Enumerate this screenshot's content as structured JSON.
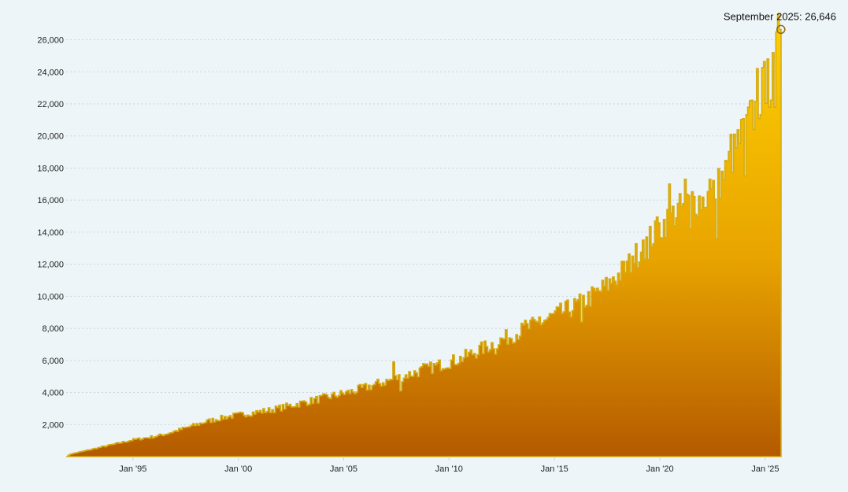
{
  "chart_data": {
    "type": "area",
    "title": "",
    "xlabel": "",
    "ylabel": "",
    "x_domain": [
      "1991-11",
      "2025-10"
    ],
    "ylim": [
      0,
      27500
    ],
    "y_ticks": [
      2000,
      4000,
      6000,
      8000,
      10000,
      12000,
      14000,
      16000,
      18000,
      20000,
      22000,
      24000,
      26000
    ],
    "y_tick_labels": [
      "2,000",
      "4,000",
      "6,000",
      "8,000",
      "10,000",
      "12,000",
      "14,000",
      "16,000",
      "18,000",
      "20,000",
      "22,000",
      "24,000",
      "26,000"
    ],
    "x_ticks": [
      "1995-01",
      "2000-01",
      "2005-01",
      "2010-01",
      "2015-01",
      "2020-01",
      "2025-01"
    ],
    "x_tick_labels": [
      "Jan '95",
      "Jan '00",
      "Jan '05",
      "Jan '10",
      "Jan '15",
      "Jan '20",
      "Jan '25"
    ],
    "grid": "horizontal dotted",
    "legend": "none",
    "fill_gradient_top": "#ffd000",
    "fill_gradient_bottom": "#b45a00",
    "line_color": "#d4ac16",
    "points": [
      [
        "1991-11",
        0
      ],
      [
        "1992-01",
        150
      ],
      [
        "1992-07",
        300
      ],
      [
        "1993-01",
        450
      ],
      [
        "1993-07",
        600
      ],
      [
        "1994-01",
        750
      ],
      [
        "1994-07",
        900
      ],
      [
        "1995-01",
        1050
      ],
      [
        "1995-07",
        1150
      ],
      [
        "1996-01",
        1250
      ],
      [
        "1996-07",
        1400
      ],
      [
        "1997-01",
        1600
      ],
      [
        "1997-07",
        1800
      ],
      [
        "1998-01",
        2000
      ],
      [
        "1998-07",
        2200
      ],
      [
        "1999-01",
        2350
      ],
      [
        "1999-07",
        2500
      ],
      [
        "2000-01",
        2600
      ],
      [
        "2000-07",
        2700
      ],
      [
        "2001-01",
        2800
      ],
      [
        "2001-07",
        2900
      ],
      [
        "2002-01",
        3050
      ],
      [
        "2002-07",
        3200
      ],
      [
        "2003-01",
        3350
      ],
      [
        "2003-07",
        3500
      ],
      [
        "2004-01",
        3650
      ],
      [
        "2004-07",
        3800
      ],
      [
        "2005-01",
        3950
      ],
      [
        "2005-07",
        4100
      ],
      [
        "2006-01",
        4300
      ],
      [
        "2006-07",
        4500
      ],
      [
        "2007-01",
        4700
      ],
      [
        "2007-07",
        4900
      ],
      [
        "2008-01",
        5100
      ],
      [
        "2008-07",
        5300
      ],
      [
        "2009-01",
        5500
      ],
      [
        "2009-07",
        5700
      ],
      [
        "2010-01",
        5900
      ],
      [
        "2010-07",
        6100
      ],
      [
        "2011-01",
        6400
      ],
      [
        "2011-07",
        6700
      ],
      [
        "2012-01",
        7000
      ],
      [
        "2012-07",
        7300
      ],
      [
        "2013-01",
        7600
      ],
      [
        "2013-07",
        7900
      ],
      [
        "2014-01",
        8200
      ],
      [
        "2014-07",
        8500
      ],
      [
        "2015-01",
        8800
      ],
      [
        "2015-07",
        9100
      ],
      [
        "2016-01",
        9400
      ],
      [
        "2016-07",
        9800
      ],
      [
        "2017-01",
        10200
      ],
      [
        "2017-07",
        10700
      ],
      [
        "2018-01",
        11300
      ],
      [
        "2018-07",
        12000
      ],
      [
        "2019-01",
        12800
      ],
      [
        "2019-07",
        13600
      ],
      [
        "2020-01",
        14300
      ],
      [
        "2020-07",
        15000
      ],
      [
        "2021-01",
        15500
      ],
      [
        "2021-07",
        16000
      ],
      [
        "2022-01",
        16000
      ],
      [
        "2022-07",
        16500
      ],
      [
        "2023-01",
        17500
      ],
      [
        "2023-07",
        19000
      ],
      [
        "2024-01",
        20500
      ],
      [
        "2024-07",
        21500
      ],
      [
        "2025-01",
        23500
      ],
      [
        "2025-04",
        23000
      ],
      [
        "2025-09",
        26646
      ],
      [
        "2025-10",
        1200
      ]
    ],
    "spikes": [
      [
        "2007-05",
        5900
      ],
      [
        "2008-10",
        5800
      ],
      [
        "2013-08",
        8500
      ],
      [
        "2014-04",
        8700
      ],
      [
        "2017-10",
        11200
      ],
      [
        "2018-09",
        12500
      ],
      [
        "2019-03",
        13500
      ],
      [
        "2019-10",
        14700
      ],
      [
        "2020-06",
        17000
      ],
      [
        "2021-03",
        17300
      ],
      [
        "2022-05",
        17300
      ],
      [
        "2023-05",
        20100
      ],
      [
        "2024-03",
        21800
      ],
      [
        "2024-08",
        24200
      ],
      [
        "2025-02",
        24800
      ],
      [
        "2025-09",
        26646
      ]
    ],
    "dips": [
      [
        "2007-09",
        4100
      ],
      [
        "2012-03",
        6400
      ],
      [
        "2016-04",
        8400
      ],
      [
        "2019-06",
        12300
      ],
      [
        "2021-06",
        14200
      ],
      [
        "2022-09",
        13600
      ],
      [
        "2024-01",
        17500
      ],
      [
        "2025-06",
        21800
      ]
    ],
    "annotation": {
      "label": "September 2025: 26,646",
      "x": "2025-09",
      "y": 26646
    }
  }
}
